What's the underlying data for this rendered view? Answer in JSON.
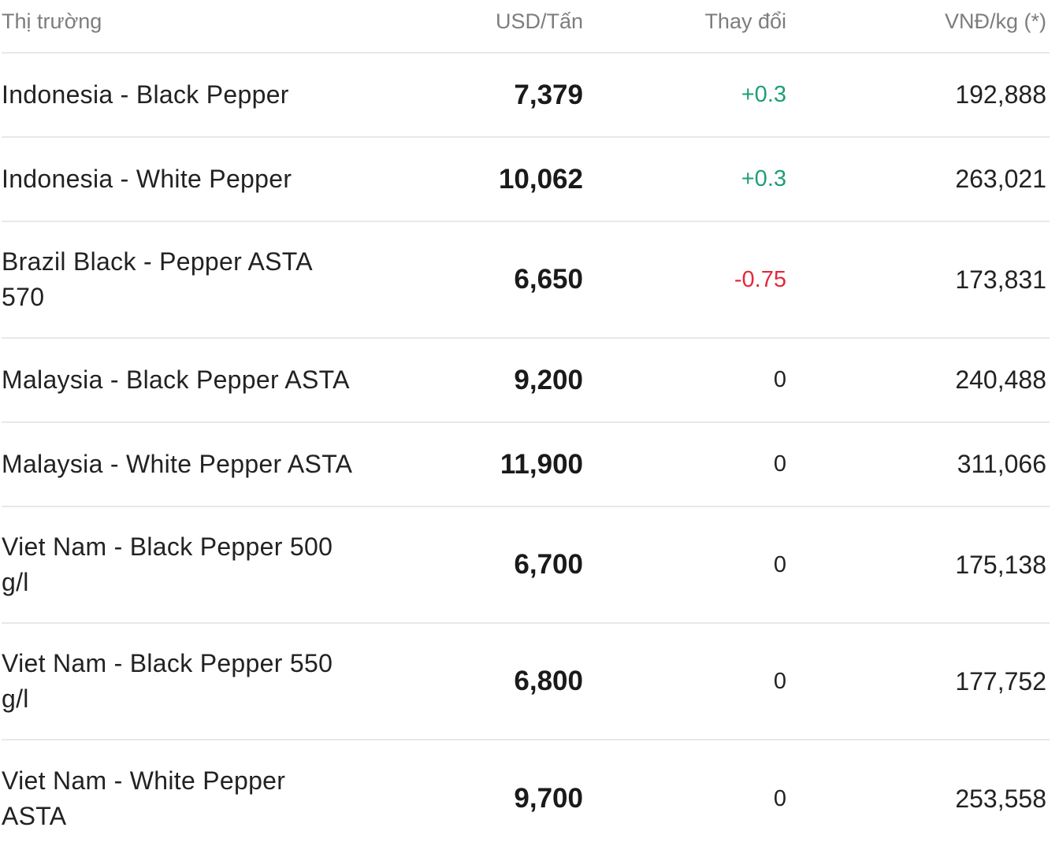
{
  "header": {
    "market": "Thị trường",
    "usd": "USD/Tấn",
    "change": "Thay đổi",
    "vnd": "VNĐ/kg (*)"
  },
  "rows": [
    {
      "market": "Indonesia - Black Pepper",
      "usd": "7,379",
      "change": "+0.3",
      "trend": "up",
      "vnd": "192,888"
    },
    {
      "market": "Indonesia - White Pepper",
      "usd": "10,062",
      "change": "+0.3",
      "trend": "up",
      "vnd": "263,021"
    },
    {
      "market": "Brazil Black - Pepper ASTA 570",
      "usd": "6,650",
      "change": "-0.75",
      "trend": "down",
      "vnd": "173,831"
    },
    {
      "market": "Malaysia - Black Pepper ASTA",
      "usd": "9,200",
      "change": "0",
      "trend": "flat",
      "vnd": "240,488"
    },
    {
      "market": "Malaysia - White Pepper ASTA",
      "usd": "11,900",
      "change": "0",
      "trend": "flat",
      "vnd": "311,066"
    },
    {
      "market": "Viet Nam - Black Pepper 500 g/l",
      "usd": "6,700",
      "change": "0",
      "trend": "flat",
      "vnd": "175,138"
    },
    {
      "market": "Viet Nam - Black Pepper 550 g/l",
      "usd": "6,800",
      "change": "0",
      "trend": "flat",
      "vnd": "177,752"
    },
    {
      "market": "Viet Nam - White Pepper ASTA",
      "usd": "9,700",
      "change": "0",
      "trend": "flat",
      "vnd": "253,558"
    }
  ],
  "colors": {
    "up": "#1e9e7a",
    "down": "#e5283c",
    "header_text": "#7d7d7d",
    "divider": "#e8e8e8"
  }
}
